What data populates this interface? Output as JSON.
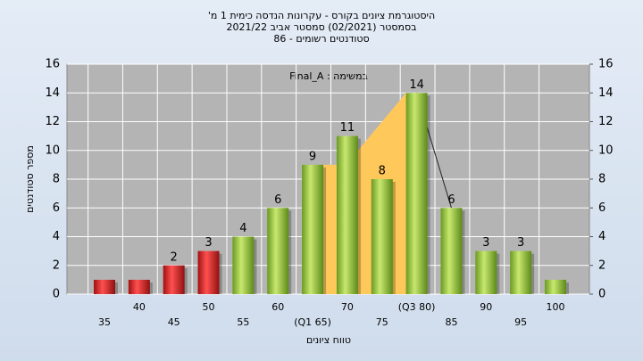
{
  "chart_data": {
    "type": "bar",
    "title": "היסטוגרמת ציונים בקורס - עקרונות הנדסה כימית 1 מ'",
    "subtitle": [
      "בסמסטר (02/2021) סמסטר אביב 2021/22",
      "סטודנטים רשומים - 86"
    ],
    "annotation": "במשימה : Final_A",
    "xlabel": "טווח ציונים",
    "ylabel": "מספר סטודנטים",
    "categories": [
      "35",
      "40",
      "45",
      "50",
      "55",
      "60",
      "(Q1 65)",
      "70",
      "75",
      "(Q3 80)",
      "85",
      "90",
      "95",
      "100"
    ],
    "values": [
      1,
      1,
      2,
      3,
      4,
      6,
      9,
      11,
      8,
      14,
      6,
      3,
      3,
      1
    ],
    "value_labels": [
      null,
      null,
      "2",
      "3",
      "4",
      "6",
      "9",
      "11",
      "8",
      "14",
      "6",
      "3",
      "3",
      null
    ],
    "colors": [
      "#e02020",
      "#e02020",
      "#e02020",
      "#e02020",
      "#9ccc3c",
      "#9ccc3c",
      "#9ccc3c",
      "#9ccc3c",
      "#9ccc3c",
      "#9ccc3c",
      "#9ccc3c",
      "#9ccc3c",
      "#9ccc3c",
      "#9ccc3c"
    ],
    "ylim": [
      0,
      16
    ],
    "yticks": [
      0,
      2,
      4,
      6,
      8,
      10,
      12,
      14,
      16
    ],
    "y2lim": [
      0,
      16
    ],
    "y2ticks": [
      0,
      2,
      4,
      6,
      8,
      10,
      12,
      14,
      16
    ],
    "grid": true
  }
}
